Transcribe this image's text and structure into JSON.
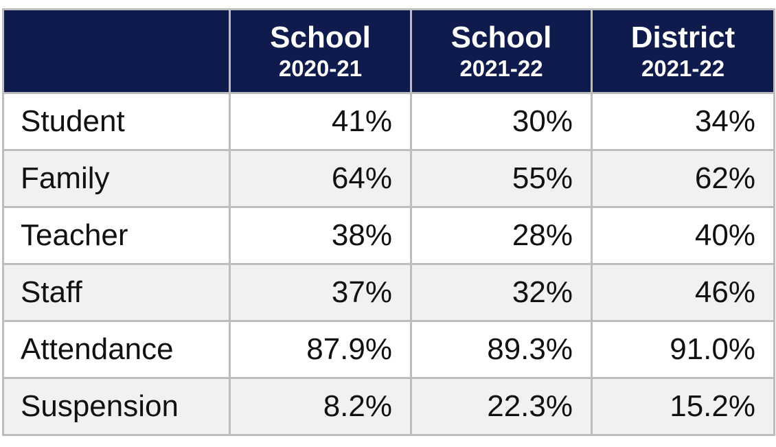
{
  "table": {
    "header": [
      {
        "line1": "School",
        "line2": "2020-21"
      },
      {
        "line1": "School",
        "line2": "2021-22"
      },
      {
        "line1": "District",
        "line2": "2021-22"
      }
    ],
    "rows": [
      {
        "label": "Student",
        "cells": [
          "41%",
          "30%",
          "34%"
        ]
      },
      {
        "label": "Family",
        "cells": [
          "64%",
          "55%",
          "62%"
        ]
      },
      {
        "label": "Teacher",
        "cells": [
          "38%",
          "28%",
          "40%"
        ]
      },
      {
        "label": "Staff",
        "cells": [
          "37%",
          "32%",
          "46%"
        ]
      },
      {
        "label": "Attendance",
        "cells": [
          "87.9%",
          "89.3%",
          "91.0%"
        ]
      },
      {
        "label": "Suspension",
        "cells": [
          "8.2%",
          "22.3%",
          "15.2%"
        ]
      }
    ]
  }
}
